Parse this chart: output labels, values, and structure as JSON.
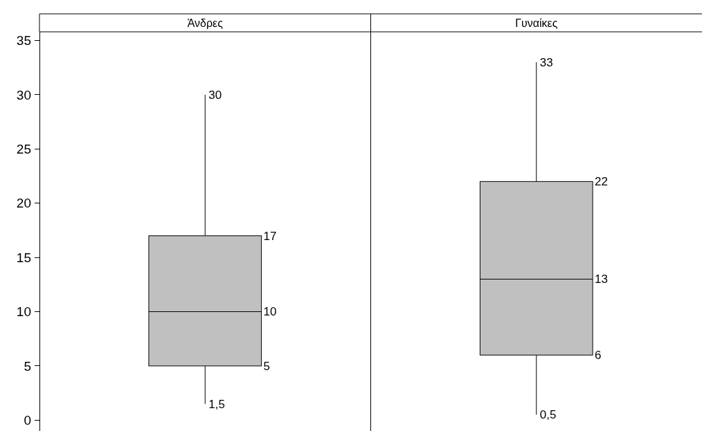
{
  "chart_data": {
    "type": "box",
    "categories": [
      "Άνδρες",
      "Γυναίκες"
    ],
    "boxes": [
      {
        "low": 1.5,
        "q1": 5,
        "median": 10,
        "q3": 17,
        "high": 30
      },
      {
        "low": 0.5,
        "q1": 6,
        "median": 13,
        "q3": 22,
        "high": 33
      }
    ],
    "color": "#c0c0c0",
    "ylim": [
      -1,
      35.8
    ],
    "yticks": [
      0,
      5,
      10,
      15,
      20,
      25,
      30,
      35
    ],
    "grid": false,
    "annotations": [
      "1,5",
      "5",
      "10",
      "17",
      "30",
      "0,5",
      "6",
      "13",
      "22",
      "33"
    ]
  }
}
